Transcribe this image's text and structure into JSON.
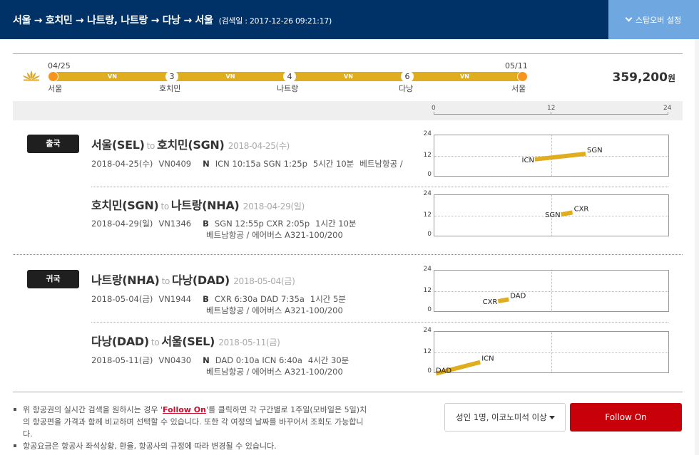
{
  "header": {
    "route": "서울 → 호치민 → 나트랑, 나트랑 → 다낭 → 서울",
    "search_date": "(검색일 : 2017-12-26 09:21:17)",
    "stopover_button": "스탑오버 설정"
  },
  "timeline": {
    "start_date": "04/25",
    "end_date": "05/11",
    "nodes": [
      {
        "city": "서울",
        "badge": ""
      },
      {
        "city": "호치민",
        "badge": "3"
      },
      {
        "city": "나트랑",
        "badge": "4"
      },
      {
        "city": "다낭",
        "badge": "6"
      },
      {
        "city": "서울",
        "badge": ""
      }
    ],
    "legs": [
      {
        "carrier": "VN"
      },
      {
        "carrier": "VN"
      },
      {
        "carrier": "VN"
      },
      {
        "carrier": "VN"
      }
    ],
    "bar_color": "#e0ad1f",
    "endpoint_color": "#f7941d"
  },
  "price": {
    "amount": "359,200",
    "unit": "원"
  },
  "axis": {
    "ticks": [
      "0",
      "12",
      "24"
    ]
  },
  "sections": [
    {
      "badge": "출국",
      "segments": [
        {
          "from": "서울(SEL)",
          "to_word": "to",
          "to": "호치민(SGN)",
          "date": "2018-04-25(수)",
          "flight_date": "2018-04-25(수)",
          "flight_no": "VN0409",
          "class": "N",
          "times": "ICN 10:15a SGN 1:25p",
          "duration": "5시간 10분",
          "airline": "베트남항공 /",
          "aircraft": ""
        },
        {
          "from": "호치민(SGN)",
          "to_word": "to",
          "to": "나트랑(NHA)",
          "date": "2018-04-29(일)",
          "flight_date": "2018-04-29(일)",
          "flight_no": "VN1346",
          "class": "B",
          "times": "SGN 12:55p CXR 2:05p",
          "duration": "1시간 10분",
          "airline": "",
          "aircraft": "베트남항공 / 에어버스 A321-100/200"
        }
      ]
    },
    {
      "badge": "귀국",
      "segments": [
        {
          "from": "나트랑(NHA)",
          "to_word": "to",
          "to": "다낭(DAD)",
          "date": "2018-05-04(금)",
          "flight_date": "2018-05-04(금)",
          "flight_no": "VN1944",
          "class": "B",
          "times": "CXR 6:30a DAD 7:35a",
          "duration": "1시간 5분",
          "airline": "",
          "aircraft": "베트남항공 / 에어버스 A321-100/200"
        },
        {
          "from": "다낭(DAD)",
          "to_word": "to",
          "to": "서울(SEL)",
          "date": "2018-05-11(금)",
          "flight_date": "2018-05-11(금)",
          "flight_no": "VN0430",
          "class": "N",
          "times": "DAD 0:10a ICN 6:40a",
          "duration": "4시간 30분",
          "airline": "",
          "aircraft": "베트남항공 / 에어버스 A321-100/200"
        }
      ]
    }
  ],
  "chart_data": [
    {
      "type": "line",
      "title": "",
      "xlabel": "",
      "ylabel": "",
      "xlim": [
        0,
        24
      ],
      "ylim": [
        0,
        24
      ],
      "yticks": [
        "0",
        "12",
        "24"
      ],
      "series": [
        {
          "name": "ICN-SGN",
          "x": [
            10.25,
            15.42
          ],
          "y": [
            10.25,
            13.42
          ],
          "labels": [
            "ICN",
            "SGN"
          ]
        }
      ]
    },
    {
      "type": "line",
      "title": "",
      "xlabel": "",
      "ylabel": "",
      "xlim": [
        0,
        24
      ],
      "ylim": [
        0,
        24
      ],
      "yticks": [
        "0",
        "12",
        "24"
      ],
      "series": [
        {
          "name": "SGN-CXR",
          "x": [
            12.92,
            14.08
          ],
          "y": [
            12.92,
            14.08
          ],
          "labels": [
            "SGN",
            "CXR"
          ]
        }
      ]
    },
    {
      "type": "line",
      "title": "",
      "xlabel": "",
      "ylabel": "",
      "xlim": [
        0,
        24
      ],
      "ylim": [
        0,
        24
      ],
      "yticks": [
        "0",
        "12",
        "24"
      ],
      "series": [
        {
          "name": "CXR-DAD",
          "x": [
            6.5,
            7.58
          ],
          "y": [
            6.5,
            7.58
          ],
          "labels": [
            "CXR",
            "DAD"
          ]
        }
      ]
    },
    {
      "type": "line",
      "title": "",
      "xlabel": "",
      "ylabel": "",
      "xlim": [
        0,
        24
      ],
      "ylim": [
        0,
        24
      ],
      "yticks": [
        "0",
        "12",
        "24"
      ],
      "series": [
        {
          "name": "DAD-ICN",
          "x": [
            0.17,
            4.67
          ],
          "y": [
            0.17,
            6.67
          ],
          "labels": [
            "DAD",
            "ICN"
          ]
        }
      ]
    }
  ],
  "footer": {
    "note1_pre": "위 항공권의 실시간 검색을 원하시는 경우 '",
    "note1_link": "Follow On",
    "note1_post": "'를 클릭하면 각 구간별로 1주일(모바일은 5일)치의 항공편을 가격과 함께 비교하며 선택할 수 있습니다. 또한 각 여정의 날짜를 바꾸어서 조회도 가능합니다.",
    "note2": "항공요금은 항공사 좌석상황, 환율, 항공사의 규정에 따라 변경될 수 있습니다.",
    "passenger_select": "성인 1명, 이코노미석 이상",
    "follow_on_button": "Follow On"
  },
  "colors": {
    "header_bg": "#003268",
    "stopover_bg": "#6fa8e0",
    "accent_gold": "#e0ad1f",
    "follow_on_red": "#c8000a"
  }
}
